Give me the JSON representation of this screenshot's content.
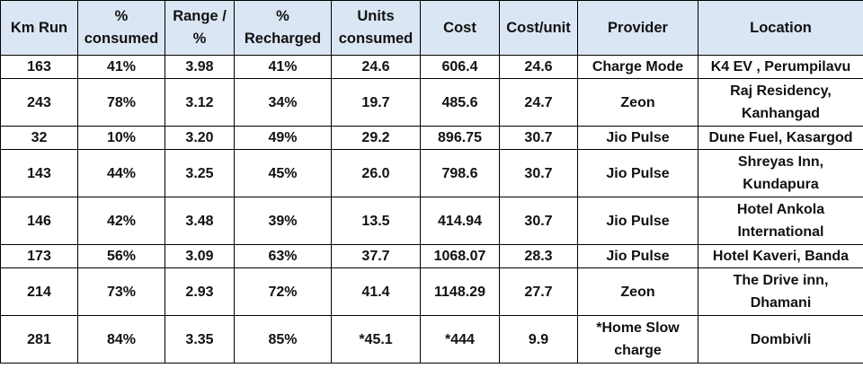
{
  "table": {
    "columns": [
      "Km Run",
      "% consumed",
      "Range / %",
      "% Recharged",
      "Units consumed",
      "Cost",
      "Cost/unit",
      "Provider",
      "Location"
    ],
    "rows": [
      [
        "163",
        "41%",
        "3.98",
        "41%",
        "24.6",
        "606.4",
        "24.6",
        "Charge Mode",
        "K4 EV , Perumpilavu"
      ],
      [
        "243",
        "78%",
        "3.12",
        "34%",
        "19.7",
        "485.6",
        "24.7",
        "Zeon",
        "Raj Residency, Kanhangad"
      ],
      [
        "32",
        "10%",
        "3.20",
        "49%",
        "29.2",
        "896.75",
        "30.7",
        "Jio Pulse",
        "Dune Fuel, Kasargod"
      ],
      [
        "143",
        "44%",
        "3.25",
        "45%",
        "26.0",
        "798.6",
        "30.7",
        "Jio Pulse",
        "Shreyas Inn, Kundapura"
      ],
      [
        "146",
        "42%",
        "3.48",
        "39%",
        "13.5",
        "414.94",
        "30.7",
        "Jio Pulse",
        "Hotel Ankola International"
      ],
      [
        "173",
        "56%",
        "3.09",
        "63%",
        "37.7",
        "1068.07",
        "28.3",
        "Jio Pulse",
        "Hotel Kaveri, Banda"
      ],
      [
        "214",
        "73%",
        "2.93",
        "72%",
        "41.4",
        "1148.29",
        "27.7",
        "Zeon",
        "The Drive inn, Dhamani"
      ],
      [
        "281",
        "84%",
        "3.35",
        "85%",
        "*45.1",
        "*444",
        "9.9",
        "*Home Slow charge",
        "Dombivli"
      ]
    ]
  },
  "colors": {
    "header_bg": "#dbe6f4",
    "border": "#000000",
    "text": "#111111"
  }
}
